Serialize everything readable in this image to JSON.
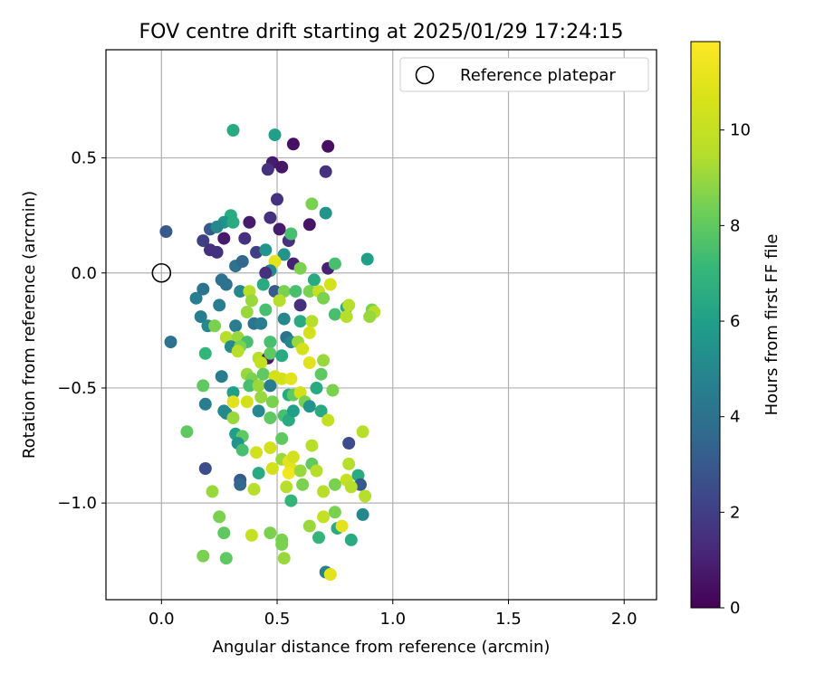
{
  "chart_data": {
    "type": "scatter",
    "title": "FOV centre drift starting at 2025/01/29 17:24:15",
    "xlabel": "Angular distance from reference (arcmin)",
    "ylabel": "Rotation from reference (arcmin)",
    "xlim": [
      -0.24,
      2.14
    ],
    "ylim": [
      -1.42,
      0.97
    ],
    "xticks": [
      0.0,
      0.5,
      1.0,
      1.5,
      2.0
    ],
    "xtick_labels": [
      "0.0",
      "0.5",
      "1.0",
      "1.5",
      "2.0"
    ],
    "yticks": [
      -1.0,
      -0.5,
      0.0,
      0.5
    ],
    "ytick_labels": [
      "−1.0",
      "−0.5",
      "0.0",
      "0.5"
    ],
    "grid": true,
    "legend": {
      "position": "top-right",
      "entries": [
        "Reference platepar"
      ]
    },
    "reference_point": {
      "x": 0.0,
      "y": 0.0
    },
    "colorbar": {
      "label": "Hours from first FF file",
      "range": [
        0,
        11.85
      ],
      "ticks": [
        0,
        2,
        4,
        6,
        8,
        10
      ],
      "tick_labels": [
        "0",
        "2",
        "4",
        "6",
        "8",
        "10"
      ],
      "colormap": "viridis"
    },
    "points": [
      [
        0.31,
        0.62,
        6.5
      ],
      [
        0.49,
        0.6,
        6.0
      ],
      [
        0.57,
        0.56,
        0.5
      ],
      [
        0.72,
        0.55,
        0.4
      ],
      [
        0.48,
        0.48,
        0.8
      ],
      [
        0.46,
        0.45,
        1.5
      ],
      [
        0.52,
        0.46,
        0.6
      ],
      [
        0.71,
        0.44,
        1.5
      ],
      [
        0.5,
        0.32,
        1.5
      ],
      [
        0.65,
        0.3,
        8.5
      ],
      [
        0.71,
        0.26,
        5.5
      ],
      [
        0.3,
        0.25,
        6.5
      ],
      [
        0.47,
        0.24,
        1.5
      ],
      [
        0.27,
        0.22,
        5.5
      ],
      [
        0.31,
        0.22,
        6.5
      ],
      [
        0.38,
        0.22,
        0.8
      ],
      [
        0.51,
        0.19,
        0.8
      ],
      [
        0.64,
        0.21,
        0.6
      ],
      [
        0.21,
        0.19,
        3.0
      ],
      [
        0.24,
        0.2,
        5.0
      ],
      [
        0.02,
        0.18,
        3.0
      ],
      [
        0.27,
        0.15,
        0.8
      ],
      [
        0.36,
        0.15,
        1.5
      ],
      [
        0.55,
        0.14,
        1.5
      ],
      [
        0.56,
        0.17,
        7.5
      ],
      [
        0.18,
        0.14,
        2.0
      ],
      [
        0.21,
        0.1,
        1.5
      ],
      [
        0.24,
        0.09,
        1.5
      ],
      [
        0.41,
        0.09,
        2.0
      ],
      [
        0.45,
        0.1,
        5.5
      ],
      [
        0.53,
        0.08,
        5.5
      ],
      [
        0.89,
        0.06,
        6.0
      ],
      [
        0.49,
        0.05,
        11.0
      ],
      [
        0.57,
        0.04,
        1.0
      ],
      [
        0.72,
        0.02,
        1.0
      ],
      [
        0.75,
        0.04,
        7.5
      ],
      [
        0.6,
        0.02,
        8.5
      ],
      [
        0.32,
        0.03,
        4.0
      ],
      [
        0.35,
        0.05,
        3.5
      ],
      [
        0.47,
        0.01,
        5.0
      ],
      [
        0.45,
        0.0,
        1.5
      ],
      [
        0.26,
        -0.03,
        4.0
      ],
      [
        0.28,
        -0.05,
        4.0
      ],
      [
        0.44,
        -0.05,
        6.5
      ],
      [
        0.49,
        -0.08,
        3.0
      ],
      [
        0.66,
        -0.03,
        6.5
      ],
      [
        0.18,
        -0.07,
        4.0
      ],
      [
        0.15,
        -0.11,
        4.5
      ],
      [
        0.34,
        -0.08,
        5.0
      ],
      [
        0.38,
        -0.08,
        9.5
      ],
      [
        0.53,
        -0.08,
        8.5
      ],
      [
        0.58,
        -0.08,
        7.5
      ],
      [
        0.64,
        -0.08,
        8.5
      ],
      [
        0.68,
        -0.08,
        10.0
      ],
      [
        0.73,
        -0.05,
        10.5
      ],
      [
        0.7,
        -0.11,
        8.5
      ],
      [
        0.39,
        -0.12,
        9.0
      ],
      [
        0.51,
        -0.12,
        9.5
      ],
      [
        0.45,
        -0.16,
        7.5
      ],
      [
        0.25,
        -0.14,
        4.5
      ],
      [
        0.37,
        -0.17,
        9.0
      ],
      [
        0.6,
        -0.14,
        1.5
      ],
      [
        0.8,
        -0.15,
        6.5
      ],
      [
        0.81,
        -0.14,
        9.5
      ],
      [
        0.17,
        -0.19,
        4.5
      ],
      [
        0.2,
        -0.23,
        5.0
      ],
      [
        0.23,
        -0.23,
        8.5
      ],
      [
        0.32,
        -0.23,
        4.5
      ],
      [
        0.4,
        -0.22,
        4.0
      ],
      [
        0.43,
        -0.22,
        4.5
      ],
      [
        0.53,
        -0.2,
        5.0
      ],
      [
        0.6,
        -0.21,
        6.5
      ],
      [
        0.65,
        -0.21,
        9.5
      ],
      [
        0.75,
        -0.18,
        7.5
      ],
      [
        0.91,
        -0.16,
        8.5
      ],
      [
        0.92,
        -0.17,
        9.5
      ],
      [
        0.9,
        -0.19,
        9.0
      ],
      [
        0.8,
        -0.19,
        9.5
      ],
      [
        0.04,
        -0.3,
        4.0
      ],
      [
        0.28,
        -0.28,
        9.5
      ],
      [
        0.33,
        -0.28,
        9.0
      ],
      [
        0.37,
        -0.3,
        7.5
      ],
      [
        0.3,
        -0.32,
        5.0
      ],
      [
        0.34,
        -0.32,
        8.5
      ],
      [
        0.47,
        -0.3,
        7.5
      ],
      [
        0.54,
        -0.28,
        4.0
      ],
      [
        0.56,
        -0.3,
        5.0
      ],
      [
        0.59,
        -0.3,
        9.0
      ],
      [
        0.64,
        -0.26,
        10.5
      ],
      [
        0.61,
        -0.33,
        10.5
      ],
      [
        0.19,
        -0.35,
        7.0
      ],
      [
        0.33,
        -0.34,
        9.5
      ],
      [
        0.42,
        -0.37,
        9.5
      ],
      [
        0.46,
        -0.37,
        0.8
      ],
      [
        0.47,
        -0.35,
        8.0
      ],
      [
        0.52,
        -0.36,
        6.5
      ],
      [
        0.43,
        -0.39,
        10.0
      ],
      [
        0.64,
        -0.39,
        11.0
      ],
      [
        0.7,
        -0.38,
        9.0
      ],
      [
        0.37,
        -0.44,
        9.0
      ],
      [
        0.39,
        -0.46,
        8.5
      ],
      [
        0.26,
        -0.45,
        4.5
      ],
      [
        0.44,
        -0.44,
        8.0
      ],
      [
        0.49,
        -0.45,
        10.5
      ],
      [
        0.52,
        -0.46,
        10.5
      ],
      [
        0.56,
        -0.46,
        11.0
      ],
      [
        0.69,
        -0.44,
        8.0
      ],
      [
        0.18,
        -0.49,
        8.0
      ],
      [
        0.31,
        -0.52,
        6.0
      ],
      [
        0.38,
        -0.49,
        7.5
      ],
      [
        0.42,
        -0.49,
        9.0
      ],
      [
        0.47,
        -0.49,
        4.5
      ],
      [
        0.55,
        -0.53,
        6.5
      ],
      [
        0.57,
        -0.53,
        8.0
      ],
      [
        0.6,
        -0.52,
        10.5
      ],
      [
        0.67,
        -0.5,
        6.5
      ],
      [
        0.19,
        -0.57,
        4.5
      ],
      [
        0.31,
        -0.56,
        11.0
      ],
      [
        0.37,
        -0.56,
        10.5
      ],
      [
        0.43,
        -0.54,
        9.0
      ],
      [
        0.48,
        -0.56,
        8.5
      ],
      [
        0.62,
        -0.56,
        8.5
      ],
      [
        0.74,
        -0.51,
        8.5
      ],
      [
        0.27,
        -0.6,
        5.0
      ],
      [
        0.28,
        -0.61,
        5.0
      ],
      [
        0.31,
        -0.63,
        9.0
      ],
      [
        0.42,
        -0.6,
        5.0
      ],
      [
        0.47,
        -0.63,
        8.0
      ],
      [
        0.53,
        -0.62,
        7.5
      ],
      [
        0.55,
        -0.64,
        6.5
      ],
      [
        0.57,
        -0.6,
        6.0
      ],
      [
        0.64,
        -0.58,
        5.5
      ],
      [
        0.69,
        -0.6,
        6.5
      ],
      [
        0.72,
        -0.64,
        10.0
      ],
      [
        0.11,
        -0.69,
        8.0
      ],
      [
        0.32,
        -0.7,
        6.0
      ],
      [
        0.35,
        -0.71,
        8.0
      ],
      [
        0.33,
        -0.74,
        5.5
      ],
      [
        0.35,
        -0.77,
        7.5
      ],
      [
        0.41,
        -0.78,
        10.5
      ],
      [
        0.47,
        -0.76,
        10.5
      ],
      [
        0.52,
        -0.72,
        8.0
      ],
      [
        0.65,
        -0.75,
        9.5
      ],
      [
        0.81,
        -0.74,
        2.5
      ],
      [
        0.87,
        -0.69,
        9.5
      ],
      [
        0.19,
        -0.85,
        2.5
      ],
      [
        0.34,
        -0.9,
        3.0
      ],
      [
        0.34,
        -0.92,
        3.5
      ],
      [
        0.42,
        -0.87,
        6.5
      ],
      [
        0.48,
        -0.85,
        10.5
      ],
      [
        0.52,
        -0.81,
        9.0
      ],
      [
        0.55,
        -0.82,
        11.0
      ],
      [
        0.57,
        -0.8,
        10.5
      ],
      [
        0.56,
        -0.85,
        11.0
      ],
      [
        0.55,
        -0.87,
        11.5
      ],
      [
        0.6,
        -0.86,
        9.0
      ],
      [
        0.65,
        -0.83,
        8.0
      ],
      [
        0.67,
        -0.86,
        9.5
      ],
      [
        0.81,
        -0.83,
        9.5
      ],
      [
        0.85,
        -0.88,
        6.5
      ],
      [
        0.8,
        -0.9,
        10.0
      ],
      [
        0.86,
        -0.92,
        3.0
      ],
      [
        0.75,
        -0.92,
        8.5
      ],
      [
        0.82,
        -0.93,
        9.5
      ],
      [
        0.61,
        -0.92,
        8.5
      ],
      [
        0.54,
        -0.93,
        9.5
      ],
      [
        0.22,
        -0.95,
        9.0
      ],
      [
        0.4,
        -0.94,
        9.5
      ],
      [
        0.7,
        -0.95,
        9.5
      ],
      [
        0.88,
        -0.97,
        9.5
      ],
      [
        0.56,
        -0.99,
        7.0
      ],
      [
        0.75,
        -1.04,
        8.5
      ],
      [
        0.7,
        -1.06,
        10.0
      ],
      [
        0.25,
        -1.06,
        8.5
      ],
      [
        0.87,
        -1.05,
        5.0
      ],
      [
        0.64,
        -1.1,
        9.0
      ],
      [
        0.76,
        -1.11,
        6.5
      ],
      [
        0.78,
        -1.1,
        11.0
      ],
      [
        0.27,
        -1.13,
        8.0
      ],
      [
        0.39,
        -1.14,
        10.0
      ],
      [
        0.47,
        -1.13,
        8.5
      ],
      [
        0.52,
        -1.16,
        8.5
      ],
      [
        0.52,
        -1.18,
        8.5
      ],
      [
        0.68,
        -1.15,
        7.0
      ],
      [
        0.82,
        -1.16,
        6.5
      ],
      [
        0.18,
        -1.23,
        8.5
      ],
      [
        0.28,
        -1.24,
        8.0
      ],
      [
        0.53,
        -1.24,
        9.0
      ],
      [
        0.71,
        -1.3,
        4.5
      ],
      [
        0.73,
        -1.31,
        11.0
      ]
    ]
  }
}
